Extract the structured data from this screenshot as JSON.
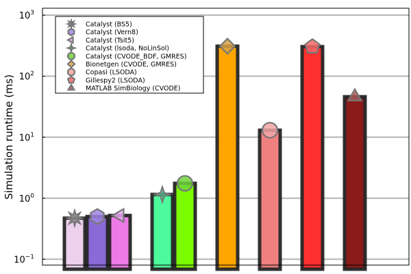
{
  "chart_data": {
    "type": "bar",
    "title": "",
    "xlabel": "",
    "ylabel": "Simulation runtime (ms)",
    "yscale": "log",
    "ylim": [
      0.08,
      1300
    ],
    "yticks": [
      {
        "value": 0.1,
        "base": "10",
        "exp": "−1"
      },
      {
        "value": 1,
        "base": "10",
        "exp": "0"
      },
      {
        "value": 10,
        "base": "10",
        "exp": "1"
      },
      {
        "value": 100,
        "base": "10",
        "exp": "2"
      },
      {
        "value": 1000,
        "base": "10",
        "exp": "3"
      }
    ],
    "grid": "horizontal",
    "legend_position": "top-left",
    "series": [
      {
        "name": "Catalyst (BS5)",
        "value": 0.47,
        "bar_color": "#ecd0ec",
        "marker": "star",
        "marker_color": "#8c8c8c",
        "group": 0
      },
      {
        "name": "Catalyst (Vern8)",
        "value": 0.5,
        "bar_color": "#8a6ad6",
        "marker": "hexagon",
        "marker_color": "#9f84e0",
        "group": 0
      },
      {
        "name": "Catalyst (Tsit5)",
        "value": 0.52,
        "bar_color": "#ee7ae6",
        "marker": "triangle-left",
        "marker_color": "#e7a8ee",
        "group": 0
      },
      {
        "name": "Catalyst (lsoda, NoLinSol)",
        "value": 1.15,
        "bar_color": "#4dfa9c",
        "marker": "star4",
        "marker_color": "#4fb08a",
        "group": 1
      },
      {
        "name": "Catalyst (CVODE_BDF, GMRES)",
        "value": 1.75,
        "bar_color": "#7cfc00",
        "marker": "circle",
        "marker_color": "#6fd23a",
        "group": 1
      },
      {
        "name": "Bionetgen (CVODE, GMRES)",
        "value": 310,
        "bar_color": "#ffa500",
        "marker": "diamond",
        "marker_color": "#d8a148",
        "group": 2
      },
      {
        "name": "Copasi (LSODA)",
        "value": 13,
        "bar_color": "#f08080",
        "marker": "circle",
        "marker_color": "#f1a6a6",
        "group": 3
      },
      {
        "name": "Gillespy2 (LSODA)",
        "value": 305,
        "bar_color": "#ff3030",
        "marker": "pentagon",
        "marker_color": "#f46a6a",
        "group": 4
      },
      {
        "name": "MATLAB SimBiology (CVODE)",
        "value": 46,
        "bar_color": "#8b1a1a",
        "marker": "triangle-up",
        "marker_color": "#a85a5a",
        "group": 5
      }
    ]
  }
}
